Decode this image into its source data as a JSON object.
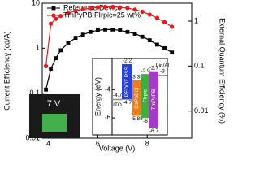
{
  "chart_data": [
    {
      "type": "line",
      "xlabel": "Voltage (V)",
      "ylabel": "Current Efficiency (cd/A)",
      "y2label": "External Quantum Efficiency (%)",
      "log_y": true,
      "xlim": [
        3.75,
        9.8
      ],
      "xticks": [
        4,
        6,
        8
      ],
      "ylim": [
        0.01,
        10
      ],
      "yticks": [
        0.01,
        0.1,
        1,
        10
      ],
      "y2lim": [
        0.0025,
        2.5
      ],
      "y2ticks": [
        0.01,
        0.1,
        1
      ],
      "legend": "upper left",
      "inset_label": "7 V",
      "x": [
        3.9,
        4.1,
        4.3,
        4.5,
        4.8,
        5.1,
        5.4,
        5.7,
        6.0,
        6.3,
        6.6,
        6.9,
        7.2,
        7.5,
        7.8,
        8.1,
        8.4,
        8.7,
        9.0
      ],
      "series": [
        {
          "name": "Reference Device",
          "color": "#000000",
          "marker": "square",
          "values": [
            0.12,
            0.35,
            0.6,
            0.9,
            1.3,
            1.7,
            2.0,
            2.3,
            2.5,
            2.6,
            2.6,
            2.5,
            2.3,
            2.1,
            1.8,
            1.5,
            1.2,
            1.0,
            0.8
          ]
        },
        {
          "name": "TmPyPB:FIrpic=25 wt%",
          "color": "#e8191c",
          "marker": "circle",
          "values": [
            0.4,
            3.5,
            4.5,
            5.2,
            6.0,
            6.8,
            7.3,
            7.8,
            8.1,
            8.3,
            8.3,
            8.1,
            7.8,
            7.2,
            6.5,
            5.6,
            4.7,
            3.8,
            3.0
          ]
        }
      ]
    },
    {
      "type": "energy",
      "ylabel": "Energy (eV)",
      "ylim": [
        -7.2,
        -1.8
      ],
      "yticks": [
        -4,
        -6
      ],
      "layers": [
        {
          "name": "ITO",
          "color": "#888888",
          "values": [
            -4.7
          ]
        },
        {
          "name": "PEDOT PSS",
          "color": "#2a3fd6",
          "values": [
            -2.2,
            -4.7
          ]
        },
        {
          "name": "CsPbBr3",
          "color": "#f07d1a",
          "values": [
            -3.35,
            -5.85
          ]
        },
        {
          "name": "FIrpic",
          "color": "#3fae3a",
          "values": [
            -2.9,
            -6.0
          ]
        },
        {
          "name": "TmPyPB",
          "color": "#a23cc8",
          "values": [
            -2.7,
            -6.7
          ]
        },
        {
          "name": "Liq/Al",
          "color": "#888888",
          "values": [
            -3.0
          ]
        }
      ]
    }
  ]
}
